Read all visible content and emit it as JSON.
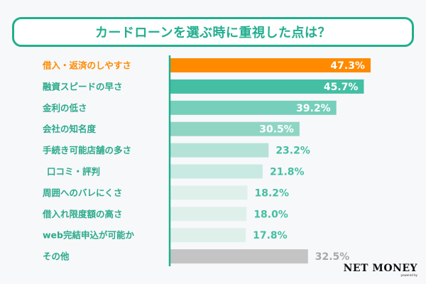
{
  "title": "カードローンを選ぶ時に重視した点は？",
  "logo": {
    "name": "NET MONEY",
    "sub": "powered by"
  },
  "chart_data": {
    "type": "bar",
    "orientation": "horizontal",
    "title": "カードローンを選ぶ時に重視した点は？",
    "xlabel": "",
    "ylabel": "",
    "xlim": [
      0,
      50
    ],
    "grid": false,
    "unit": "%",
    "categories": [
      "借入・返済のしやすさ",
      "融資スピードの早さ",
      "金利の低さ",
      "会社の知名度",
      "手続き可能店舗の多さ",
      "口コミ・評判",
      "周囲へのバレにくさ",
      "借入れ限度額の高さ",
      "web完結申込が可能か",
      "その他"
    ],
    "values": [
      47.3,
      45.7,
      39.2,
      30.5,
      23.2,
      21.8,
      18.2,
      18.0,
      17.8,
      32.5
    ],
    "value_labels": [
      "47.3%",
      "45.7%",
      "39.2%",
      "30.5%",
      "23.2%",
      "21.8%",
      "18.2%",
      "18.0%",
      "17.8%",
      "32.5%"
    ],
    "bar_colors": [
      "#ff8a00",
      "#44bfa3",
      "#76cfbb",
      "#8fd5c4",
      "#b5e2d7",
      "#c9eae2",
      "#dff0eb",
      "#dff0eb",
      "#dff0eb",
      "#c4c4c4"
    ],
    "label_colors": [
      "#ff8a00",
      "#2baa8c",
      "#2baa8c",
      "#2baa8c",
      "#2baa8c",
      "#2baa8c",
      "#2baa8c",
      "#2baa8c",
      "#2baa8c",
      "#2baa8c"
    ],
    "value_label_colors": [
      "#ffffff",
      "#ffffff",
      "#ffffff",
      "#ffffff",
      "#44bfa3",
      "#44bfa3",
      "#44bfa3",
      "#44bfa3",
      "#44bfa3",
      "#a8a8a8"
    ],
    "value_label_inside": [
      true,
      true,
      true,
      true,
      false,
      false,
      false,
      false,
      false,
      false
    ],
    "axis_color": "#22ae8e"
  }
}
